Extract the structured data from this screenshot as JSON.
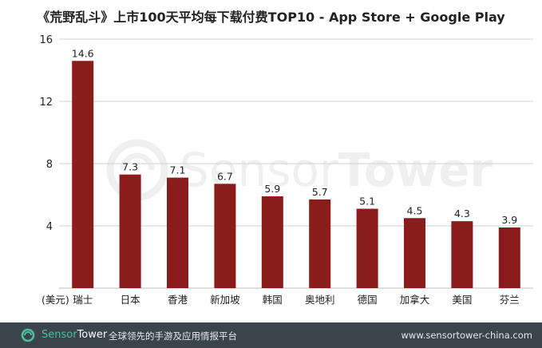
{
  "chart_data": {
    "type": "bar",
    "title": "《荒野乱斗》上市100天平均每下载付费TOP10 - App Store + Google Play",
    "unit_label": "(美元)",
    "categories": [
      "瑞士",
      "日本",
      "香港",
      "新加坡",
      "韩国",
      "奥地利",
      "德国",
      "加拿大",
      "美国",
      "芬兰"
    ],
    "values": [
      14.6,
      7.3,
      7.1,
      6.7,
      5.9,
      5.7,
      5.1,
      4.5,
      4.3,
      3.9
    ],
    "value_labels": [
      "14.6",
      "7.3",
      "7.1",
      "6.7",
      "5.9",
      "5.7",
      "5.1",
      "4.5",
      "4.3",
      "3.9"
    ],
    "ylim": [
      0,
      16
    ],
    "yticks": [
      "4",
      "8",
      "12",
      "16"
    ],
    "grid": true,
    "bar_color": "#8b1c1c"
  },
  "watermark": {
    "brand_part1": "Sensor",
    "brand_part2": "Tower"
  },
  "footer": {
    "brand_part1": "Sensor",
    "brand_part2": "Tower",
    "slogan": "全球领先的手游及应用情报平台",
    "url": "www.sensortower-china.com",
    "background": "#39444d",
    "accent": "#4fbf9b"
  }
}
